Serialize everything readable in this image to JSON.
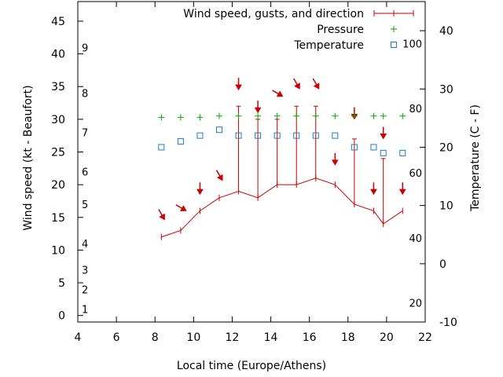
{
  "chart_data": {
    "type": "line",
    "xlabel": "Local time (Europe/Athens)",
    "ylabel": "Wind speed (kt - Beaufort)",
    "y2label": "Temperature (C - F)",
    "xlim": [
      4,
      22
    ],
    "ylim": [
      -1,
      48
    ],
    "y2lim_celsius": [
      -10,
      45
    ],
    "x_ticks": [
      4,
      6,
      8,
      10,
      12,
      14,
      16,
      18,
      20,
      22
    ],
    "y_ticks": [
      0,
      5,
      10,
      15,
      20,
      25,
      30,
      35,
      40,
      45
    ],
    "y2_ticks_celsius": [
      -10,
      0,
      10,
      20,
      30,
      40
    ],
    "fahrenheit_labels": [
      {
        "value": "20",
        "celsius": -6.7
      },
      {
        "value": "40",
        "celsius": 4.4
      },
      {
        "value": "60",
        "celsius": 15.6
      },
      {
        "value": "80",
        "celsius": 26.7
      },
      {
        "value": "100",
        "celsius": 37.8
      }
    ],
    "beaufort_labels": [
      {
        "value": "1",
        "kt": 1
      },
      {
        "value": "2",
        "kt": 4
      },
      {
        "value": "3",
        "kt": 7
      },
      {
        "value": "4",
        "kt": 11
      },
      {
        "value": "5",
        "kt": 17
      },
      {
        "value": "6",
        "kt": 22
      },
      {
        "value": "7",
        "kt": 28
      },
      {
        "value": "8",
        "kt": 34
      },
      {
        "value": "9",
        "kt": 41
      }
    ],
    "legend": {
      "placement": "top-right",
      "entries": [
        "Wind speed, gusts, and direction",
        "Pressure",
        "Temperature"
      ]
    },
    "series": [
      {
        "name": "Wind speed, gusts, and direction",
        "color": "#cc0000",
        "x": [
          8.33,
          9.33,
          10.33,
          11.33,
          12.33,
          13.33,
          14.33,
          15.33,
          16.33,
          17.33,
          18.33,
          19.33,
          19.83,
          20.83
        ],
        "speed": [
          12,
          13,
          16,
          18,
          19,
          18,
          20,
          20,
          21,
          20,
          17,
          16,
          14,
          16
        ],
        "gust": [
          null,
          null,
          null,
          null,
          32,
          30,
          30,
          32,
          32,
          null,
          27,
          null,
          24,
          null
        ],
        "direction_deg": [
          330,
          300,
          360,
          330,
          360,
          360,
          300,
          330,
          330,
          360,
          360,
          360,
          360,
          360
        ],
        "direction_y": [
          15.5,
          16.5,
          19.5,
          21.5,
          35.5,
          32,
          34,
          35.5,
          35.5,
          24,
          31,
          19.5,
          28,
          19.5
        ]
      },
      {
        "name": "Pressure",
        "color": "#00aa00",
        "x": [
          8.33,
          9.33,
          10.33,
          11.33,
          12.33,
          13.33,
          14.33,
          15.33,
          16.33,
          17.33,
          18.33,
          19.33,
          19.83,
          20.83
        ],
        "y": [
          30.3,
          30.3,
          30.3,
          30.5,
          30.5,
          30.5,
          30.5,
          30.5,
          30.5,
          30.5,
          30.5,
          30.5,
          30.5,
          30.5
        ]
      },
      {
        "name": "Temperature",
        "color": "#1a7fc1",
        "x": [
          8.33,
          9.33,
          10.33,
          11.33,
          12.33,
          13.33,
          14.33,
          15.33,
          16.33,
          17.33,
          18.33,
          19.33,
          19.83,
          20.83
        ],
        "celsius": [
          20,
          21,
          22,
          23,
          22,
          22,
          22,
          22,
          22,
          22,
          20,
          20,
          19,
          19
        ]
      }
    ]
  }
}
